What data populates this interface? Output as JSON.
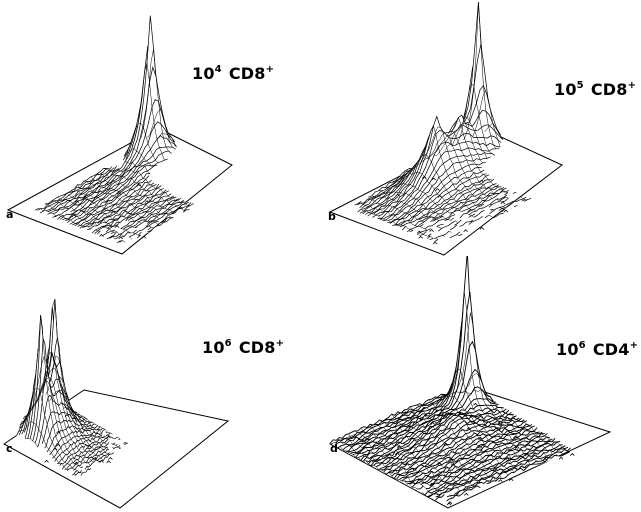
{
  "figure": {
    "panels": [
      {
        "id": "a",
        "letter": "a",
        "base": "10",
        "exponent": "4",
        "cell": "CD8",
        "sign": "+"
      },
      {
        "id": "b",
        "letter": "b",
        "base": "10",
        "exponent": "5",
        "cell": "CD8",
        "sign": "+"
      },
      {
        "id": "c",
        "letter": "c",
        "base": "10",
        "exponent": "6",
        "cell": "CD8",
        "sign": "+"
      },
      {
        "id": "d",
        "letter": "d",
        "base": "10",
        "exponent": "6",
        "cell": "CD4",
        "sign": "+"
      }
    ]
  },
  "colors": {
    "ink": "#000000",
    "paper": "#ffffff"
  }
}
